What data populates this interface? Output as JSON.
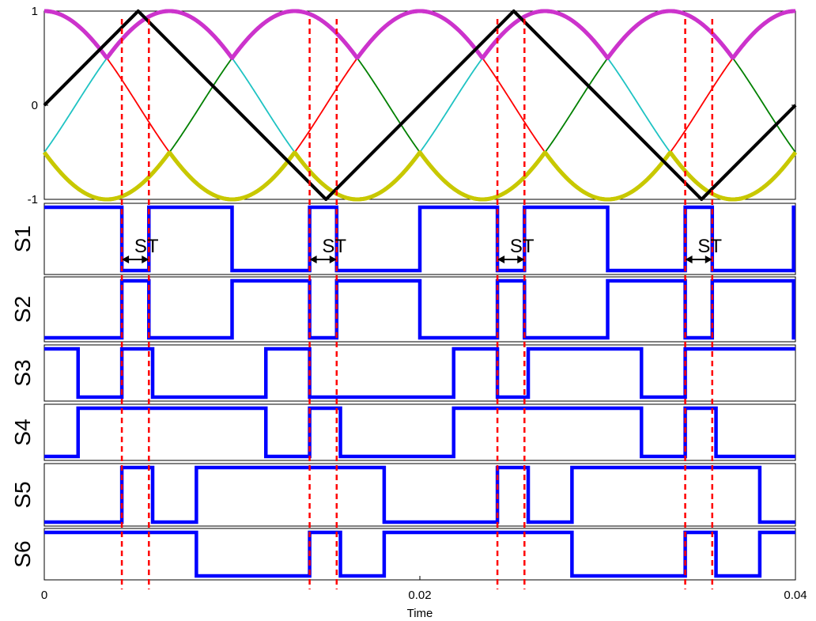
{
  "chart_data": [
    {
      "type": "line",
      "panel": "modulation",
      "xlabel": "",
      "ylabel": "",
      "xlim": [
        0,
        0.04
      ],
      "ylim": [
        -1,
        1
      ],
      "yticks": [
        {
          "value": 1,
          "label": "1"
        },
        {
          "value": 0,
          "label": "0"
        },
        {
          "value": -1,
          "label": "-1"
        }
      ],
      "series": [
        {
          "color": "#ff0000",
          "style": "sine",
          "amplitude": 1.0,
          "phase_deg": 90,
          "frequency_hz": 50
        },
        {
          "color": "#1fc3c3",
          "style": "sine",
          "amplitude": 1.0,
          "phase_deg": -30,
          "frequency_hz": 50
        },
        {
          "color": "#008000",
          "style": "sine",
          "amplitude": 1.0,
          "phase_deg": 210,
          "frequency_hz": 50
        },
        {
          "color": "#cc33cc",
          "style": "max-envelope",
          "note_values": "max of the three sinusoids"
        },
        {
          "color": "#c8c800",
          "style": "min-envelope",
          "note_values": "min of the three sinusoids"
        },
        {
          "color": "#000000",
          "style": "triangle-carrier",
          "points": [
            [
              0,
              0
            ],
            [
              0.005,
              1
            ],
            [
              0.015,
              -1
            ],
            [
              0.025,
              1
            ],
            [
              0.035,
              -1
            ],
            [
              0.04,
              0
            ]
          ]
        }
      ]
    },
    {
      "type": "line",
      "panel": "switching",
      "xlabel": "Time",
      "xlim": [
        0,
        0.04
      ],
      "xticks": [
        {
          "value": 0,
          "label": "0"
        },
        {
          "value": 0.02,
          "label": "0.02"
        },
        {
          "value": 0.04,
          "label": "0.04"
        }
      ],
      "shoot_through_times": [
        0.00413,
        0.00557,
        0.01413,
        0.01557,
        0.02413,
        0.02557,
        0.03413,
        0.03557
      ],
      "st_label": "ST",
      "st_markers": [
        {
          "t0": 0.00413,
          "t1": 0.00557
        },
        {
          "t0": 0.01413,
          "t1": 0.01557
        },
        {
          "t0": 0.02413,
          "t1": 0.02557
        },
        {
          "t0": 0.03413,
          "t1": 0.03557
        }
      ],
      "series": [
        {
          "name": "S1",
          "color": "#0000ff",
          "initial": 1,
          "transitions": [
            0.00413,
            0.00557,
            0.01,
            0.01413,
            0.01557,
            0.02,
            0.02413,
            0.02557,
            0.03,
            0.03413,
            0.03557,
            0.0399
          ]
        },
        {
          "name": "S2",
          "color": "#0000ff",
          "initial": 0,
          "transitions": [
            0.00413,
            0.00557,
            0.01,
            0.01413,
            0.01557,
            0.02,
            0.02413,
            0.02557,
            0.03,
            0.03413,
            0.03557,
            0.0399
          ]
        },
        {
          "name": "S3",
          "color": "#0000ff",
          "initial": 1,
          "transitions": [
            0.0018,
            0.00413,
            0.00577,
            0.0118,
            0.01413,
            0.0218,
            0.02413,
            0.02577,
            0.0318,
            0.03413
          ]
        },
        {
          "name": "S4",
          "color": "#0000ff",
          "initial": 0,
          "transitions": [
            0.0018,
            0.0118,
            0.01413,
            0.01577,
            0.0218,
            0.0318,
            0.03413,
            0.03577
          ]
        },
        {
          "name": "S5",
          "color": "#0000ff",
          "initial": 0,
          "transitions": [
            0.00413,
            0.00577,
            0.0081,
            0.0181,
            0.02413,
            0.02577,
            0.0281,
            0.0381
          ]
        },
        {
          "name": "S6",
          "color": "#0000ff",
          "initial": 1,
          "transitions": [
            0.0081,
            0.01413,
            0.01577,
            0.0181,
            0.0281,
            0.03413,
            0.03577,
            0.0381
          ]
        }
      ]
    }
  ]
}
